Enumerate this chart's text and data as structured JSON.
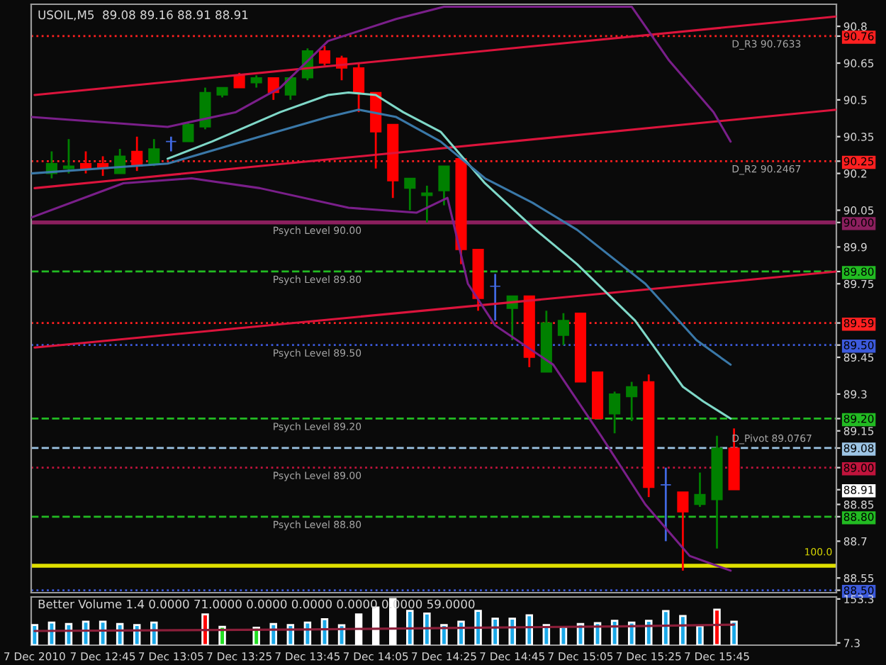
{
  "chart_data": [
    {
      "type": "candlestick",
      "title": "USOIL,M5  89.08 89.16 88.91 88.91",
      "x": [
        "2010-12-07T12:30",
        "2010-12-07T12:35",
        "2010-12-07T12:40",
        "2010-12-07T12:45",
        "2010-12-07T12:50",
        "2010-12-07T12:55",
        "2010-12-07T13:00",
        "2010-12-07T13:05",
        "2010-12-07T13:10",
        "2010-12-07T13:15",
        "2010-12-07T13:20",
        "2010-12-07T13:25",
        "2010-12-07T13:30",
        "2010-12-07T13:35",
        "2010-12-07T13:40",
        "2010-12-07T13:45",
        "2010-12-07T13:50",
        "2010-12-07T13:55",
        "2010-12-07T14:00",
        "2010-12-07T14:05",
        "2010-12-07T14:10",
        "2010-12-07T14:15",
        "2010-12-07T14:20",
        "2010-12-07T14:25",
        "2010-12-07T14:30",
        "2010-12-07T14:35",
        "2010-12-07T14:40",
        "2010-12-07T14:45",
        "2010-12-07T14:50",
        "2010-12-07T14:55",
        "2010-12-07T15:00",
        "2010-12-07T15:05",
        "2010-12-07T15:10",
        "2010-12-07T15:15",
        "2010-12-07T15:20",
        "2010-12-07T15:25",
        "2010-12-07T15:30",
        "2010-12-07T15:35",
        "2010-12-07T15:40",
        "2010-12-07T15:45",
        "2010-12-07T15:50"
      ],
      "ohlc": [
        [
          90.2,
          90.29,
          90.18,
          90.24
        ],
        [
          90.22,
          90.34,
          90.2,
          90.23
        ],
        [
          90.24,
          90.29,
          90.2,
          90.22
        ],
        [
          90.24,
          90.27,
          90.19,
          90.22
        ],
        [
          90.2,
          90.3,
          90.2,
          90.27
        ],
        [
          90.29,
          90.35,
          90.21,
          90.23
        ],
        [
          90.24,
          90.34,
          90.23,
          90.3
        ],
        [
          90.33,
          90.35,
          90.29,
          90.33
        ],
        [
          90.33,
          90.41,
          90.33,
          90.4
        ],
        [
          90.39,
          90.55,
          90.38,
          90.53
        ],
        [
          90.52,
          90.55,
          90.51,
          90.55
        ],
        [
          90.6,
          90.61,
          90.55,
          90.55
        ],
        [
          90.57,
          90.6,
          90.55,
          90.59
        ],
        [
          90.59,
          90.59,
          90.5,
          90.53
        ],
        [
          90.52,
          90.59,
          90.5,
          90.59
        ],
        [
          90.59,
          90.71,
          90.58,
          90.7
        ],
        [
          90.7,
          90.72,
          90.64,
          90.65
        ],
        [
          90.67,
          90.68,
          90.58,
          90.63
        ],
        [
          90.63,
          90.65,
          90.45,
          90.53
        ],
        [
          90.53,
          90.53,
          90.22,
          90.37
        ],
        [
          90.4,
          90.4,
          90.1,
          90.17
        ],
        [
          90.14,
          90.18,
          90.05,
          90.18
        ],
        [
          90.11,
          90.15,
          90.0,
          90.12
        ],
        [
          90.13,
          90.23,
          90.07,
          90.23
        ],
        [
          90.26,
          90.26,
          89.83,
          89.89
        ],
        [
          89.89,
          89.89,
          89.64,
          89.69
        ],
        [
          89.74,
          89.79,
          89.6,
          89.74
        ],
        [
          89.65,
          89.7,
          89.52,
          89.7
        ],
        [
          89.7,
          89.7,
          89.41,
          89.45
        ],
        [
          89.39,
          89.64,
          89.39,
          89.59
        ],
        [
          89.54,
          89.63,
          89.5,
          89.6
        ],
        [
          89.63,
          89.63,
          89.35,
          89.35
        ],
        [
          89.39,
          89.39,
          89.2,
          89.2
        ],
        [
          89.22,
          89.31,
          89.14,
          89.3
        ],
        [
          89.29,
          89.35,
          89.19,
          89.33
        ],
        [
          89.35,
          89.38,
          88.88,
          88.92
        ],
        [
          88.93,
          89.0,
          88.7,
          88.93
        ],
        [
          88.9,
          88.9,
          88.58,
          88.82
        ],
        [
          88.85,
          88.98,
          88.84,
          88.89
        ],
        [
          88.87,
          89.13,
          88.67,
          89.08
        ],
        [
          89.08,
          89.16,
          88.91,
          88.91
        ]
      ],
      "colors": [
        "#008000",
        "#008000",
        "#ff0000",
        "#ff0000",
        "#008000",
        "#ff0000",
        "#008000",
        "#4169e1",
        "#008000",
        "#008000",
        "#008000",
        "#ff0000",
        "#008000",
        "#ff0000",
        "#008000",
        "#008000",
        "#ff0000",
        "#ff0000",
        "#ff0000",
        "#ff0000",
        "#ff0000",
        "#008000",
        "#008000",
        "#008000",
        "#ff0000",
        "#ff0000",
        "#4169e1",
        "#008000",
        "#ff0000",
        "#008000",
        "#008000",
        "#ff0000",
        "#ff0000",
        "#008000",
        "#008000",
        "#ff0000",
        "#4169e1",
        "#ff0000",
        "#008000",
        "#008000",
        "#ff0000"
      ],
      "series": [
        {
          "type": "line",
          "color": "#dc143c",
          "x": [
            "2010-12-07T12:25",
            "2010-12-07T16:20"
          ],
          "values": [
            90.52,
            90.84
          ]
        },
        {
          "type": "line",
          "color": "#dc143c",
          "x": [
            "2010-12-07T12:25",
            "2010-12-07T16:20"
          ],
          "values": [
            90.14,
            90.46
          ]
        },
        {
          "type": "line",
          "color": "#dc143c",
          "x": [
            "2010-12-07T12:25",
            "2010-12-07T16:20"
          ],
          "values": [
            89.49,
            89.8
          ]
        },
        {
          "type": "line",
          "color": "#7fd8c8",
          "x": [
            "2010-12-07T13:04",
            "2010-12-07T13:17",
            "2010-12-07T13:37",
            "2010-12-07T13:51",
            "2010-12-07T13:57",
            "2010-12-07T14:05",
            "2010-12-07T14:13",
            "2010-12-07T14:24",
            "2010-12-07T14:37",
            "2010-12-07T14:51",
            "2010-12-07T15:04",
            "2010-12-07T15:21",
            "2010-12-07T15:35",
            "2010-12-07T15:41",
            "2010-12-07T15:49"
          ],
          "values": [
            90.26,
            90.33,
            90.45,
            90.52,
            90.53,
            90.52,
            90.45,
            90.37,
            90.16,
            89.98,
            89.83,
            89.6,
            89.33,
            89.27,
            89.2
          ]
        },
        {
          "type": "line",
          "color": "#3a78a8",
          "x": [
            "2010-12-07T12:24",
            "2010-12-07T13:04",
            "2010-12-07T13:31",
            "2010-12-07T13:51",
            "2010-12-07T14:00",
            "2010-12-07T14:11",
            "2010-12-07T14:24",
            "2010-12-07T14:37",
            "2010-12-07T14:51",
            "2010-12-07T15:04",
            "2010-12-07T15:24",
            "2010-12-07T15:39",
            "2010-12-07T15:49"
          ],
          "values": [
            90.2,
            90.24,
            90.35,
            90.43,
            90.46,
            90.43,
            90.33,
            90.18,
            90.08,
            89.97,
            89.75,
            89.52,
            89.42
          ]
        },
        {
          "type": "line",
          "color": "#7a1f8a",
          "x": [
            "2010-12-07T12:24",
            "2010-12-07T13:04",
            "2010-12-07T13:24",
            "2010-12-07T13:37",
            "2010-12-07T13:51",
            "2010-12-07T14:11",
            "2010-12-07T14:25",
            "2010-12-07T14:50",
            "2010-12-07T15:20",
            "2010-12-07T15:31",
            "2010-12-07T15:44",
            "2010-12-07T15:49"
          ],
          "values": [
            90.43,
            90.39,
            90.45,
            90.55,
            90.74,
            90.83,
            90.88,
            null,
            90.88,
            90.66,
            90.45,
            90.33
          ]
        },
        {
          "type": "line",
          "color": "#7a1f8a",
          "x": [
            "2010-12-07T12:24",
            "2010-12-07T12:51",
            "2010-12-07T13:11",
            "2010-12-07T13:31",
            "2010-12-07T13:57",
            "2010-12-07T14:17",
            "2010-12-07T14:26",
            "2010-12-07T14:32",
            "2010-12-07T14:40",
            "2010-12-07T14:57",
            "2010-12-07T15:11",
            "2010-12-07T15:24",
            "2010-12-07T15:37",
            "2010-12-07T15:49"
          ],
          "values": [
            90.02,
            90.16,
            90.18,
            90.14,
            90.06,
            90.04,
            90.1,
            89.75,
            89.58,
            89.42,
            89.13,
            88.85,
            88.64,
            88.58
          ]
        }
      ],
      "ref_lines": [
        {
          "axis": "y",
          "value": 90.76,
          "label": "D_R3 90.7633",
          "color": "#ff2020",
          "line_style": "dotted"
        },
        {
          "axis": "y",
          "value": 90.25,
          "label": "D_R2 90.2467",
          "color": "#ff2020",
          "line_style": "dotted"
        },
        {
          "axis": "y",
          "value": 90.0,
          "label": "Psych Level 90.00",
          "color": "#8b1f5e",
          "line_style": "solid"
        },
        {
          "axis": "y",
          "value": 89.8,
          "label": "Psych Level 89.80",
          "color": "#22bb22",
          "line_style": "dashed"
        },
        {
          "axis": "y",
          "value": 89.59,
          "color": "#ff2020",
          "line_style": "dotted"
        },
        {
          "axis": "y",
          "value": 89.5,
          "label": "Psych Level 89.50",
          "color": "#3c5adc",
          "line_style": "dotted"
        },
        {
          "axis": "y",
          "value": 89.2,
          "label": "Psych Level 89.20",
          "color": "#22bb22",
          "line_style": "dashed"
        },
        {
          "axis": "y",
          "value": 89.08,
          "label": "D_Pivot 89.0767",
          "color": "#9cc4e4",
          "line_style": "dashed"
        },
        {
          "axis": "y",
          "value": 89.0,
          "label": "Psych Level 89.00",
          "color": "#c0143c",
          "line_style": "dotted"
        },
        {
          "axis": "y",
          "value": 88.8,
          "label": "Psych Level 88.80",
          "color": "#22bb22",
          "line_style": "dashed"
        },
        {
          "axis": "y",
          "value": 88.6,
          "color": "#e0e000",
          "line_style": "solid"
        },
        {
          "axis": "y",
          "value": 88.5,
          "color": "#3c5adc",
          "line_style": "dotted"
        }
      ],
      "annotations": [
        "100.0"
      ],
      "xlim": [
        "2010-12-07T12:24",
        "2010-12-07T16:20"
      ],
      "ylim": [
        88.49,
        90.89
      ],
      "yticks": [
        90.8,
        {
          "value": 90.76,
          "label": "90.76"
        },
        90.65,
        90.5,
        90.35,
        {
          "value": 90.25,
          "label": "90.25"
        },
        90.2,
        90.05,
        {
          "value": 90.0,
          "label": "90.00"
        },
        89.9,
        {
          "value": 89.8,
          "label": "89.80"
        },
        89.75,
        {
          "value": 89.59,
          "label": "89.59"
        },
        {
          "value": 89.5,
          "label": "89.50"
        },
        89.45,
        89.3,
        {
          "value": 89.2,
          "label": "89.20"
        },
        89.15,
        {
          "value": 89.08,
          "label": "89.08"
        },
        {
          "value": 89.0,
          "label": "89.00"
        },
        {
          "value": 88.91,
          "label": "88.91"
        },
        88.85,
        {
          "value": 88.8,
          "label": "88.80"
        },
        88.7,
        88.55,
        {
          "value": 88.5,
          "label": "88.50"
        }
      ],
      "tick_labels": "y",
      "grid": false,
      "legend": false
    },
    {
      "type": "bar",
      "title": "Better Volume 1.4 0.0000 71.0000 0.0000 0.0000 0.0000 0.0000 59.0000",
      "series": [
        {
          "type": "bar",
          "x": [
            "2010-12-07T12:25",
            "2010-12-07T12:30",
            "2010-12-07T12:35",
            "2010-12-07T12:40",
            "2010-12-07T12:45",
            "2010-12-07T12:50",
            "2010-12-07T12:55",
            "2010-12-07T13:00",
            "2010-12-07T13:05",
            "2010-12-07T13:10",
            "2010-12-07T13:15",
            "2010-12-07T13:20",
            "2010-12-07T13:25",
            "2010-12-07T13:30",
            "2010-12-07T13:35",
            "2010-12-07T13:40",
            "2010-12-07T13:45",
            "2010-12-07T13:50",
            "2010-12-07T13:55",
            "2010-12-07T14:00",
            "2010-12-07T14:05",
            "2010-12-07T14:10",
            "2010-12-07T14:15",
            "2010-12-07T14:20",
            "2010-12-07T14:25",
            "2010-12-07T14:30",
            "2010-12-07T14:35",
            "2010-12-07T14:40",
            "2010-12-07T14:45",
            "2010-12-07T14:50",
            "2010-12-07T14:55",
            "2010-12-07T15:00",
            "2010-12-07T15:05",
            "2010-12-07T15:10",
            "2010-12-07T15:15",
            "2010-12-07T15:20",
            "2010-12-07T15:25",
            "2010-12-07T15:30",
            "2010-12-07T15:35",
            "2010-12-07T15:40",
            "2010-12-07T15:45",
            "2010-12-07T15:50"
          ],
          "values": [
            67,
            75,
            70,
            78,
            78,
            70,
            67,
            75,
            null,
            null,
            102,
            61,
            null,
            58,
            70,
            67,
            75,
            86,
            66,
            102,
            125,
            153,
            114,
            105,
            67,
            78,
            114,
            88,
            88,
            99,
            67,
            60,
            70,
            73,
            81,
            75,
            81,
            113,
            97,
            63,
            118,
            78
          ],
          "colors": [
            "#1aa8e8",
            "#1aa8e8",
            "#1aa8e8",
            "#1aa8e8",
            "#1aa8e8",
            "#1aa8e8",
            "#1aa8e8",
            "#1aa8e8",
            "#1aa8e8",
            "#1aa8e8",
            "#ff0000",
            "#22dd22",
            "#1aa8e8",
            "#22dd22",
            "#1aa8e8",
            "#1aa8e8",
            "#1aa8e8",
            "#1aa8e8",
            "#1aa8e8",
            "#ffffff",
            "#ffffff",
            "#ffffff",
            "#1aa8e8",
            "#1aa8e8",
            "#1aa8e8",
            "#1aa8e8",
            "#1aa8e8",
            "#1aa8e8",
            "#1aa8e8",
            "#1aa8e8",
            "#1aa8e8",
            "#1aa8e8",
            "#1aa8e8",
            "#1aa8e8",
            "#1aa8e8",
            "#1aa8e8",
            "#1aa8e8",
            "#1aa8e8",
            "#1aa8e8",
            "#1aa8e8",
            "#ff0000",
            "#1aa8e8"
          ]
        },
        {
          "type": "line",
          "color": "#8b1f3a",
          "x": [
            "2010-12-07T12:25",
            "2010-12-07T13:45",
            "2010-12-07T14:35",
            "2010-12-07T15:15",
            "2010-12-07T15:50"
          ],
          "values": [
            47,
            52,
            58,
            62,
            68
          ]
        }
      ],
      "xlim": [
        "2010-12-07T12:24",
        "2010-12-07T16:20"
      ],
      "xticks": [
        {
          "value": "2010-12-07T12:25",
          "label": "7 Dec 2010"
        },
        {
          "value": "2010-12-07T12:45",
          "label": "7 Dec 12:45"
        },
        {
          "value": "2010-12-07T13:05",
          "label": "7 Dec 13:05"
        },
        {
          "value": "2010-12-07T13:25",
          "label": "7 Dec 13:25"
        },
        {
          "value": "2010-12-07T13:45",
          "label": "7 Dec 13:45"
        },
        {
          "value": "2010-12-07T14:05",
          "label": "7 Dec 14:05"
        },
        {
          "value": "2010-12-07T14:25",
          "label": "7 Dec 14:25"
        },
        {
          "value": "2010-12-07T14:45",
          "label": "7 Dec 14:45"
        },
        {
          "value": "2010-12-07T15:05",
          "label": "7 Dec 15:05"
        },
        {
          "value": "2010-12-07T15:25",
          "label": "7 Dec 15:25"
        },
        {
          "value": "2010-12-07T15:45",
          "label": "7 Dec 15:45"
        }
      ],
      "ylim": [
        0,
        160
      ],
      "yticks": [
        153.3,
        7.3
      ],
      "grid": false,
      "legend": false
    }
  ]
}
